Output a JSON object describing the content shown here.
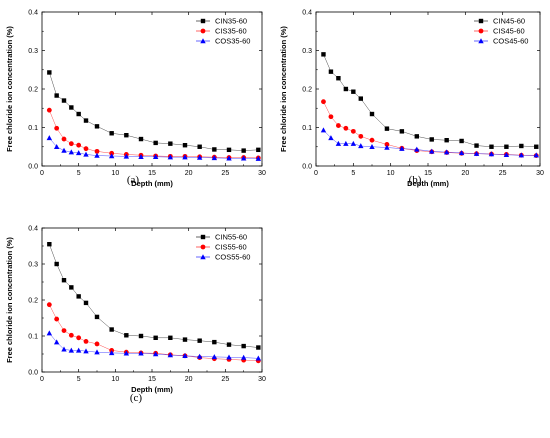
{
  "chart_data": [
    {
      "type": "line",
      "panel_label": "(a)",
      "xlabel": "Depth (mm)",
      "ylabel": "Free chloride ion concentration (%)",
      "xlim": [
        0,
        30
      ],
      "ylim": [
        0,
        0.4
      ],
      "xticks": [
        "0",
        "5",
        "10",
        "15",
        "20",
        "25",
        "30"
      ],
      "yticks": [
        "0.0",
        "0.1",
        "0.2",
        "0.3",
        "0.4"
      ],
      "legend_position": "top-right",
      "series": [
        {
          "name": "CIN35-60",
          "color": "#000000",
          "marker": "square",
          "x": [
            1,
            2,
            3,
            4,
            5,
            6,
            7.5,
            9.5,
            11.5,
            13.5,
            15.5,
            17.5,
            19.5,
            21.5,
            23.5,
            25.5,
            27.5,
            29.5
          ],
          "y": [
            0.243,
            0.183,
            0.17,
            0.152,
            0.135,
            0.118,
            0.103,
            0.085,
            0.08,
            0.07,
            0.06,
            0.058,
            0.054,
            0.05,
            0.043,
            0.042,
            0.04,
            0.042
          ]
        },
        {
          "name": "CIS35-60",
          "color": "#ff0000",
          "marker": "circle",
          "x": [
            1,
            2,
            3,
            4,
            5,
            6,
            7.5,
            9.5,
            11.5,
            13.5,
            15.5,
            17.5,
            19.5,
            21.5,
            23.5,
            25.5,
            27.5,
            29.5
          ],
          "y": [
            0.145,
            0.098,
            0.07,
            0.058,
            0.054,
            0.045,
            0.038,
            0.033,
            0.03,
            0.028,
            0.026,
            0.025,
            0.025,
            0.024,
            0.023,
            0.022,
            0.022,
            0.021
          ]
        },
        {
          "name": "COS35-60",
          "color": "#0000ff",
          "marker": "triangle",
          "x": [
            1,
            2,
            3,
            4,
            5,
            6,
            7.5,
            9.5,
            11.5,
            13.5,
            15.5,
            17.5,
            19.5,
            21.5,
            23.5,
            25.5,
            27.5,
            29.5
          ],
          "y": [
            0.073,
            0.05,
            0.04,
            0.036,
            0.034,
            0.03,
            0.027,
            0.026,
            0.025,
            0.024,
            0.024,
            0.023,
            0.023,
            0.022,
            0.021,
            0.02,
            0.02,
            0.019
          ]
        }
      ]
    },
    {
      "type": "line",
      "panel_label": "(b)",
      "xlabel": "Depth (mm)",
      "ylabel": "Free chloride ion concentration (%)",
      "xlim": [
        0,
        30
      ],
      "ylim": [
        0,
        0.4
      ],
      "xticks": [
        "0",
        "5",
        "10",
        "15",
        "20",
        "25",
        "30"
      ],
      "yticks": [
        "0.0",
        "0.1",
        "0.2",
        "0.3",
        "0.4"
      ],
      "legend_position": "top-right",
      "series": [
        {
          "name": "CIN45-60",
          "color": "#000000",
          "marker": "square",
          "x": [
            1,
            2,
            3,
            4,
            5,
            6,
            7.5,
            9.5,
            11.5,
            13.5,
            15.5,
            17.5,
            19.5,
            21.5,
            23.5,
            25.5,
            27.5,
            29.5
          ],
          "y": [
            0.29,
            0.245,
            0.228,
            0.2,
            0.193,
            0.175,
            0.135,
            0.097,
            0.09,
            0.077,
            0.069,
            0.067,
            0.065,
            0.053,
            0.05,
            0.05,
            0.052,
            0.05
          ]
        },
        {
          "name": "CIS45-60",
          "color": "#ff0000",
          "marker": "circle",
          "x": [
            1,
            2,
            3,
            4,
            5,
            6,
            7.5,
            9.5,
            11.5,
            13.5,
            15.5,
            17.5,
            19.5,
            21.5,
            23.5,
            25.5,
            27.5,
            29.5
          ],
          "y": [
            0.167,
            0.128,
            0.105,
            0.098,
            0.09,
            0.077,
            0.067,
            0.056,
            0.046,
            0.04,
            0.037,
            0.035,
            0.033,
            0.032,
            0.031,
            0.03,
            0.028,
            0.027
          ]
        },
        {
          "name": "COS45-60",
          "color": "#0000ff",
          "marker": "triangle",
          "x": [
            1,
            2,
            3,
            4,
            5,
            6,
            7.5,
            9.5,
            11.5,
            13.5,
            15.5,
            17.5,
            19.5,
            21.5,
            23.5,
            25.5,
            27.5,
            29.5
          ],
          "y": [
            0.093,
            0.073,
            0.058,
            0.058,
            0.058,
            0.052,
            0.05,
            0.048,
            0.045,
            0.043,
            0.038,
            0.036,
            0.034,
            0.032,
            0.031,
            0.029,
            0.028,
            0.028
          ]
        }
      ]
    },
    {
      "type": "line",
      "panel_label": "(c)",
      "xlabel": "Depth (mm)",
      "ylabel": "Free chloride ion concentration (%)",
      "xlim": [
        0,
        30
      ],
      "ylim": [
        0,
        0.4
      ],
      "xticks": [
        "0",
        "5",
        "10",
        "15",
        "20",
        "25",
        "30"
      ],
      "yticks": [
        "0.0",
        "0.1",
        "0.2",
        "0.3",
        "0.4"
      ],
      "legend_position": "top-right",
      "series": [
        {
          "name": "CIN55-60",
          "color": "#000000",
          "marker": "square",
          "x": [
            1,
            2,
            3,
            4,
            5,
            6,
            7.5,
            9.5,
            11.5,
            13.5,
            15.5,
            17.5,
            19.5,
            21.5,
            23.5,
            25.5,
            27.5,
            29.5
          ],
          "y": [
            0.355,
            0.3,
            0.255,
            0.235,
            0.21,
            0.192,
            0.153,
            0.118,
            0.102,
            0.1,
            0.095,
            0.095,
            0.09,
            0.087,
            0.083,
            0.076,
            0.072,
            0.068
          ]
        },
        {
          "name": "CIS55-60",
          "color": "#ff0000",
          "marker": "circle",
          "x": [
            1,
            2,
            3,
            4,
            5,
            6,
            7.5,
            9.5,
            11.5,
            13.5,
            15.5,
            17.5,
            19.5,
            21.5,
            23.5,
            25.5,
            27.5,
            29.5
          ],
          "y": [
            0.187,
            0.147,
            0.115,
            0.102,
            0.095,
            0.085,
            0.078,
            0.06,
            0.055,
            0.053,
            0.052,
            0.048,
            0.045,
            0.04,
            0.037,
            0.035,
            0.033,
            0.031
          ]
        },
        {
          "name": "COS55-60",
          "color": "#0000ff",
          "marker": "triangle",
          "x": [
            1,
            2,
            3,
            4,
            5,
            6,
            7.5,
            9.5,
            11.5,
            13.5,
            15.5,
            17.5,
            19.5,
            21.5,
            23.5,
            25.5,
            27.5,
            29.5
          ],
          "y": [
            0.108,
            0.083,
            0.063,
            0.06,
            0.06,
            0.058,
            0.055,
            0.053,
            0.052,
            0.052,
            0.05,
            0.047,
            0.045,
            0.043,
            0.042,
            0.041,
            0.04,
            0.038
          ]
        }
      ]
    }
  ]
}
